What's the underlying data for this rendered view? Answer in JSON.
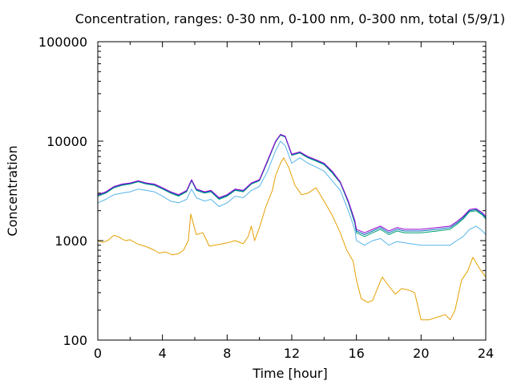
{
  "chart_data": {
    "type": "line",
    "title": "Concentration, ranges: 0-30 nm, 0-100 nm, 0-300 nm, total (5/9/1)",
    "xlabel": "Time [hour]",
    "ylabel": "Concentration",
    "xlim": [
      0,
      24
    ],
    "ylim": [
      100,
      100000
    ],
    "yscale": "log",
    "grid": false,
    "legend": "none",
    "xticks": [
      "0",
      "4",
      "8",
      "12",
      "16",
      "20",
      "24"
    ],
    "yticks": [
      "100",
      "1000",
      "10000",
      "100000"
    ],
    "series": [
      {
        "color": "#e5a000",
        "x": [
          0,
          0.3,
          0.6,
          1.0,
          1.3,
          1.7,
          2.0,
          2.5,
          3.0,
          3.5,
          3.8,
          4.2,
          4.6,
          5.0,
          5.3,
          5.6,
          5.75,
          5.9,
          6.1,
          6.5,
          6.9,
          7.2,
          7.6,
          8.0,
          8.5,
          9.0,
          9.3,
          9.5,
          9.7,
          10.0,
          10.4,
          10.8,
          11.0,
          11.3,
          11.5,
          11.8,
          12.2,
          12.6,
          13.0,
          13.5,
          14.0,
          14.5,
          15.0,
          15.4,
          15.8,
          16.0,
          16.3,
          16.7,
          17.0,
          17.3,
          17.6,
          18.0,
          18.4,
          18.8,
          19.2,
          19.6,
          20.0,
          20.5,
          21.0,
          21.5,
          21.8,
          22.1,
          22.5,
          22.9,
          23.2,
          23.6,
          24.0
        ],
        "values": [
          1000,
          960,
          1000,
          1130,
          1090,
          1000,
          1020,
          920,
          870,
          800,
          750,
          770,
          720,
          740,
          800,
          1000,
          1850,
          1500,
          1150,
          1200,
          880,
          900,
          920,
          950,
          1000,
          930,
          1100,
          1400,
          1000,
          1350,
          2200,
          3200,
          4500,
          6000,
          6800,
          5500,
          3600,
          2900,
          3000,
          3400,
          2500,
          1800,
          1200,
          800,
          620,
          400,
          260,
          240,
          250,
          330,
          430,
          350,
          290,
          330,
          320,
          300,
          160,
          160,
          170,
          180,
          160,
          200,
          400,
          500,
          680,
          530,
          430
        ]
      },
      {
        "color": "#56b4e9",
        "x": [
          0,
          0.5,
          1.0,
          1.5,
          2.0,
          2.5,
          3.0,
          3.5,
          4.0,
          4.5,
          5.0,
          5.5,
          5.8,
          6.1,
          6.6,
          7.0,
          7.5,
          8.0,
          8.5,
          9.0,
          9.5,
          10.0,
          10.5,
          11.0,
          11.3,
          11.6,
          12.0,
          12.5,
          13.0,
          13.5,
          14.0,
          14.5,
          15.0,
          15.5,
          15.9,
          16.0,
          16.5,
          17.0,
          17.5,
          18.0,
          18.5,
          19.0,
          20.0,
          21.0,
          21.8,
          22.2,
          22.6,
          23.0,
          23.4,
          23.8,
          24.0
        ],
        "values": [
          2400,
          2600,
          2900,
          3000,
          3100,
          3300,
          3200,
          3100,
          2800,
          2500,
          2400,
          2600,
          3300,
          2700,
          2500,
          2600,
          2200,
          2400,
          2800,
          2700,
          3200,
          3500,
          5000,
          8000,
          10000,
          9000,
          6000,
          6800,
          6000,
          5500,
          5000,
          4000,
          3200,
          2000,
          1300,
          1000,
          900,
          1000,
          1050,
          900,
          980,
          950,
          900,
          900,
          900,
          1000,
          1100,
          1300,
          1400,
          1250,
          1150
        ]
      },
      {
        "color": "#009e73",
        "x": [
          0,
          0.5,
          1.0,
          1.5,
          2.0,
          2.5,
          3.0,
          3.5,
          4.0,
          4.5,
          5.0,
          5.5,
          5.8,
          6.1,
          6.6,
          7.0,
          7.5,
          8.0,
          8.5,
          9.0,
          9.5,
          10.0,
          10.5,
          11.0,
          11.3,
          11.6,
          12.0,
          12.5,
          13.0,
          13.5,
          14.0,
          14.5,
          15.0,
          15.5,
          15.9,
          16.0,
          16.5,
          17.0,
          17.5,
          18.0,
          18.5,
          19.0,
          20.0,
          21.0,
          21.8,
          22.2,
          22.6,
          23.0,
          23.4,
          23.8,
          24.0
        ],
        "values": [
          2800,
          3000,
          3400,
          3600,
          3700,
          3900,
          3700,
          3600,
          3300,
          3000,
          2800,
          3100,
          4000,
          3200,
          3000,
          3100,
          2600,
          2800,
          3200,
          3100,
          3700,
          4000,
          6200,
          9800,
          11500,
          11000,
          7200,
          7600,
          6800,
          6300,
          5800,
          4800,
          3800,
          2400,
          1500,
          1200,
          1100,
          1200,
          1300,
          1150,
          1250,
          1200,
          1200,
          1250,
          1300,
          1450,
          1650,
          1950,
          2000,
          1800,
          1650
        ]
      },
      {
        "color": "#0072b2",
        "x": [
          0,
          0.5,
          1.0,
          1.5,
          2.0,
          2.5,
          3.0,
          3.5,
          4.0,
          4.5,
          5.0,
          5.5,
          5.8,
          6.1,
          6.6,
          7.0,
          7.5,
          8.0,
          8.5,
          9.0,
          9.5,
          10.0,
          10.5,
          11.0,
          11.3,
          11.6,
          12.0,
          12.5,
          13.0,
          13.5,
          14.0,
          14.5,
          15.0,
          15.5,
          15.9,
          16.0,
          16.5,
          17.0,
          17.5,
          18.0,
          18.5,
          19.0,
          20.0,
          21.0,
          21.8,
          22.2,
          22.6,
          23.0,
          23.4,
          23.8,
          24.0
        ],
        "values": [
          2850,
          3050,
          3450,
          3650,
          3750,
          3950,
          3750,
          3650,
          3350,
          3050,
          2850,
          3150,
          4050,
          3250,
          3050,
          3150,
          2650,
          2850,
          3250,
          3150,
          3750,
          4050,
          6300,
          9900,
          11600,
          11100,
          7300,
          7700,
          6900,
          6400,
          5900,
          4900,
          3850,
          2450,
          1550,
          1250,
          1150,
          1250,
          1350,
          1200,
          1300,
          1250,
          1250,
          1300,
          1350,
          1500,
          1700,
          2000,
          2050,
          1850,
          1700
        ]
      },
      {
        "color": "#9400d3",
        "x": [
          0,
          0.5,
          1.0,
          1.5,
          2.0,
          2.5,
          3.0,
          3.5,
          4.0,
          4.5,
          5.0,
          5.5,
          5.8,
          6.1,
          6.6,
          7.0,
          7.5,
          8.0,
          8.5,
          9.0,
          9.5,
          10.0,
          10.5,
          11.0,
          11.3,
          11.6,
          12.0,
          12.5,
          13.0,
          13.5,
          14.0,
          14.5,
          15.0,
          15.5,
          15.9,
          16.0,
          16.5,
          17.0,
          17.5,
          18.0,
          18.5,
          19.0,
          20.0,
          21.0,
          21.8,
          22.2,
          22.6,
          23.0,
          23.4,
          23.8,
          24.0
        ],
        "values": [
          2900,
          3100,
          3500,
          3700,
          3800,
          4000,
          3800,
          3700,
          3400,
          3100,
          2900,
          3200,
          4100,
          3300,
          3100,
          3200,
          2700,
          2900,
          3300,
          3200,
          3800,
          4100,
          6400,
          10000,
          11700,
          11200,
          7400,
          7800,
          7000,
          6500,
          6000,
          5000,
          3900,
          2500,
          1600,
          1300,
          1200,
          1300,
          1400,
          1250,
          1350,
          1300,
          1300,
          1350,
          1400,
          1550,
          1750,
          2050,
          2100,
          1900,
          1750
        ]
      }
    ]
  }
}
